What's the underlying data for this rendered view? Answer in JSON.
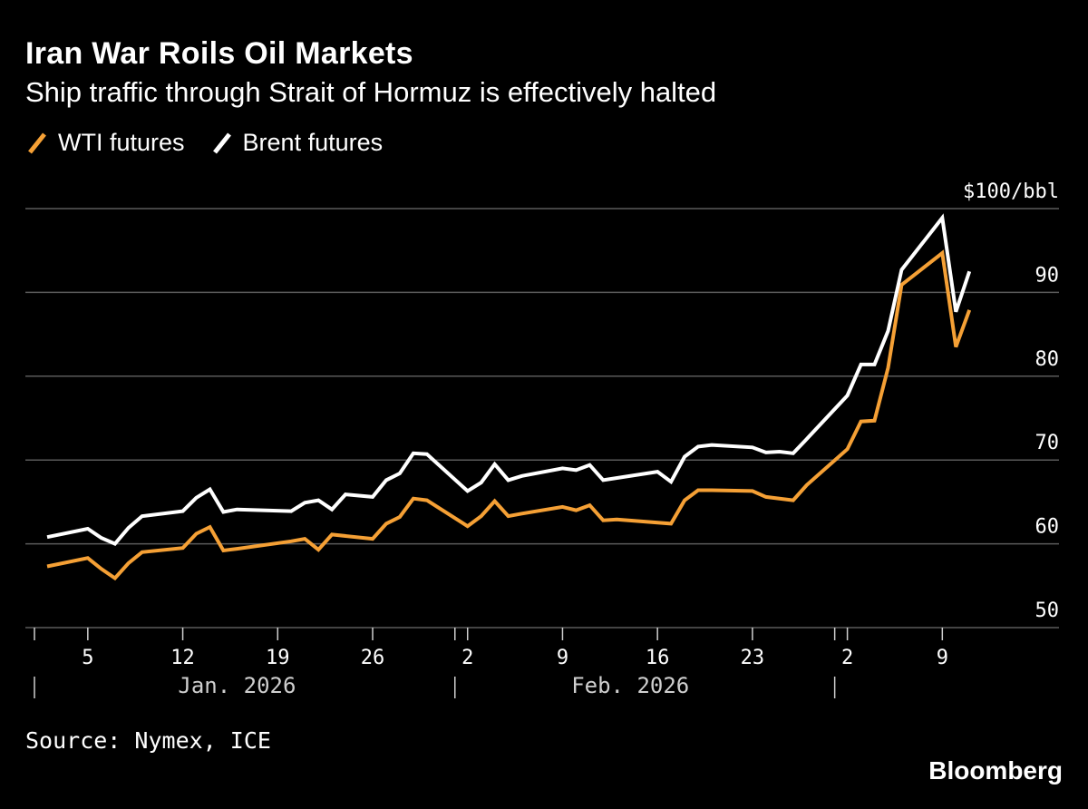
{
  "header": {
    "title": "Iran War Roils Oil Markets",
    "subtitle": "Ship traffic through Strait of Hormuz is effectively halted"
  },
  "footer": {
    "source": "Source: Nymex, ICE",
    "brand": "Bloomberg"
  },
  "colors": {
    "wti": "#f5a035",
    "brent": "#ffffff",
    "grid": "#5a5a5a",
    "background": "#000000"
  },
  "chart_data": {
    "type": "line",
    "title": "Iran War Roils Oil Markets",
    "subtitle": "Ship traffic through Strait of Hormuz is effectively halted",
    "ylabel": "$/bbl",
    "y_unit_label": "$100/bbl",
    "ylim": [
      50,
      100
    ],
    "y_ticks": [
      50,
      60,
      70,
      80,
      90,
      100
    ],
    "y_tick_labels": [
      "50",
      "60",
      "70",
      "80",
      "90",
      "$100/bbl"
    ],
    "x_range": [
      "2025-12-31",
      "2026-03-13"
    ],
    "x_ticks": [
      {
        "date": "2026-01-05",
        "label": "5"
      },
      {
        "date": "2026-01-12",
        "label": "12"
      },
      {
        "date": "2026-01-19",
        "label": "19"
      },
      {
        "date": "2026-01-26",
        "label": "26"
      },
      {
        "date": "2026-02-02",
        "label": "2"
      },
      {
        "date": "2026-02-09",
        "label": "9"
      },
      {
        "date": "2026-02-16",
        "label": "16"
      },
      {
        "date": "2026-02-23",
        "label": "23"
      },
      {
        "date": "2026-03-02",
        "label": "2"
      },
      {
        "date": "2026-03-09",
        "label": "9"
      }
    ],
    "month_labels": [
      {
        "label": "Jan. 2026",
        "center": "2026-01-16"
      },
      {
        "label": "Feb. 2026",
        "center": "2026-02-14"
      }
    ],
    "month_separators": [
      "2026-01-01",
      "2026-02-01",
      "2026-03-01"
    ],
    "grid": true,
    "legend": "top-left",
    "series": [
      {
        "name": "WTI futures",
        "color": "#f5a035",
        "data": [
          [
            "2026-01-02",
            57.3
          ],
          [
            "2026-01-05",
            58.3
          ],
          [
            "2026-01-06",
            57.0
          ],
          [
            "2026-01-07",
            55.9
          ],
          [
            "2026-01-08",
            57.7
          ],
          [
            "2026-01-09",
            59.0
          ],
          [
            "2026-01-12",
            59.5
          ],
          [
            "2026-01-13",
            61.2
          ],
          [
            "2026-01-14",
            62.0
          ],
          [
            "2026-01-15",
            59.2
          ],
          [
            "2026-01-16",
            59.4
          ],
          [
            "2026-01-20",
            60.3
          ],
          [
            "2026-01-21",
            60.6
          ],
          [
            "2026-01-22",
            59.3
          ],
          [
            "2026-01-23",
            61.1
          ],
          [
            "2026-01-26",
            60.6
          ],
          [
            "2026-01-27",
            62.4
          ],
          [
            "2026-01-28",
            63.2
          ],
          [
            "2026-01-29",
            65.4
          ],
          [
            "2026-01-30",
            65.2
          ],
          [
            "2026-02-02",
            62.1
          ],
          [
            "2026-02-03",
            63.3
          ],
          [
            "2026-02-04",
            65.1
          ],
          [
            "2026-02-05",
            63.3
          ],
          [
            "2026-02-06",
            63.6
          ],
          [
            "2026-02-09",
            64.4
          ],
          [
            "2026-02-10",
            64.0
          ],
          [
            "2026-02-11",
            64.6
          ],
          [
            "2026-02-12",
            62.8
          ],
          [
            "2026-02-13",
            62.9
          ],
          [
            "2026-02-17",
            62.4
          ],
          [
            "2026-02-18",
            65.2
          ],
          [
            "2026-02-19",
            66.4
          ],
          [
            "2026-02-20",
            66.4
          ],
          [
            "2026-02-23",
            66.3
          ],
          [
            "2026-02-24",
            65.6
          ],
          [
            "2026-02-26",
            65.2
          ],
          [
            "2026-02-27",
            67.0
          ],
          [
            "2026-03-02",
            71.3
          ],
          [
            "2026-03-03",
            74.6
          ],
          [
            "2026-03-04",
            74.7
          ],
          [
            "2026-03-05",
            81.0
          ],
          [
            "2026-03-06",
            90.9
          ],
          [
            "2026-03-09",
            94.7
          ],
          [
            "2026-03-10",
            83.5
          ],
          [
            "2026-03-11",
            87.9
          ]
        ]
      },
      {
        "name": "Brent futures",
        "color": "#ffffff",
        "data": [
          [
            "2026-01-02",
            60.8
          ],
          [
            "2026-01-05",
            61.8
          ],
          [
            "2026-01-06",
            60.7
          ],
          [
            "2026-01-07",
            60.0
          ],
          [
            "2026-01-08",
            61.9
          ],
          [
            "2026-01-09",
            63.3
          ],
          [
            "2026-01-12",
            63.9
          ],
          [
            "2026-01-13",
            65.5
          ],
          [
            "2026-01-14",
            66.5
          ],
          [
            "2026-01-15",
            63.8
          ],
          [
            "2026-01-16",
            64.1
          ],
          [
            "2026-01-20",
            63.9
          ],
          [
            "2026-01-21",
            64.9
          ],
          [
            "2026-01-22",
            65.2
          ],
          [
            "2026-01-23",
            64.1
          ],
          [
            "2026-01-24",
            65.9
          ],
          [
            "2026-01-26",
            65.6
          ],
          [
            "2026-01-27",
            67.6
          ],
          [
            "2026-01-28",
            68.4
          ],
          [
            "2026-01-29",
            70.8
          ],
          [
            "2026-01-30",
            70.7
          ],
          [
            "2026-02-02",
            66.3
          ],
          [
            "2026-02-03",
            67.3
          ],
          [
            "2026-02-04",
            69.5
          ],
          [
            "2026-02-05",
            67.6
          ],
          [
            "2026-02-06",
            68.1
          ],
          [
            "2026-02-09",
            69.0
          ],
          [
            "2026-02-10",
            68.8
          ],
          [
            "2026-02-11",
            69.4
          ],
          [
            "2026-02-12",
            67.6
          ],
          [
            "2026-02-16",
            68.6
          ],
          [
            "2026-02-17",
            67.4
          ],
          [
            "2026-02-18",
            70.4
          ],
          [
            "2026-02-19",
            71.6
          ],
          [
            "2026-02-20",
            71.8
          ],
          [
            "2026-02-23",
            71.5
          ],
          [
            "2026-02-24",
            70.9
          ],
          [
            "2026-02-25",
            71.0
          ],
          [
            "2026-02-26",
            70.8
          ],
          [
            "2026-02-27",
            72.5
          ],
          [
            "2026-03-02",
            77.7
          ],
          [
            "2026-03-03",
            81.4
          ],
          [
            "2026-03-04",
            81.4
          ],
          [
            "2026-03-05",
            85.4
          ],
          [
            "2026-03-06",
            92.7
          ],
          [
            "2026-03-09",
            98.9
          ],
          [
            "2026-03-10",
            87.7
          ],
          [
            "2026-03-11",
            92.5
          ]
        ]
      }
    ]
  }
}
